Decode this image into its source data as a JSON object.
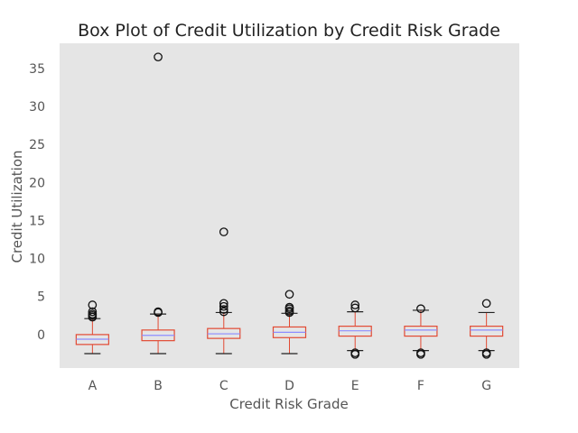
{
  "chart_data": {
    "type": "box",
    "title": "Box Plot of Credit Utilization by Credit Risk Grade",
    "xlabel": "Credit Risk Grade",
    "ylabel": "Credit Utilization",
    "categories": [
      "A",
      "B",
      "C",
      "D",
      "E",
      "F",
      "G"
    ],
    "ylim": [
      -4.4,
      38.3
    ],
    "yticks": [
      0,
      5,
      10,
      15,
      20,
      25,
      30,
      35
    ],
    "grid": false,
    "colors": {
      "plot_bg": "#e5e5e5",
      "box": "#e24a33",
      "median": "#8c8cff",
      "whisker": "#e24a33",
      "cap": "#222222",
      "flier": "#111111"
    },
    "boxes": [
      {
        "category": "A",
        "whislo": -2.5,
        "q1": -1.3,
        "median": -0.6,
        "q3": 0.0,
        "whishi": 2.1,
        "fliers": [
          2.3,
          2.5,
          2.7,
          3.0,
          3.9
        ]
      },
      {
        "category": "B",
        "whislo": -2.5,
        "q1": -0.8,
        "median": -0.1,
        "q3": 0.6,
        "whishi": 2.7,
        "fliers": [
          2.9,
          3.0,
          36.5
        ]
      },
      {
        "category": "C",
        "whislo": -2.5,
        "q1": -0.5,
        "median": 0.1,
        "q3": 0.8,
        "whishi": 2.9,
        "fliers": [
          3.0,
          3.3,
          3.7,
          4.1,
          13.5
        ]
      },
      {
        "category": "D",
        "whislo": -2.5,
        "q1": -0.4,
        "median": 0.3,
        "q3": 1.0,
        "whishi": 2.8,
        "fliers": [
          2.9,
          3.1,
          3.4,
          3.6,
          5.3
        ]
      },
      {
        "category": "E",
        "whislo": -2.1,
        "q1": -0.2,
        "median": 0.5,
        "q3": 1.1,
        "whishi": 3.0,
        "fliers": [
          -2.4,
          -2.6,
          3.5,
          3.9
        ]
      },
      {
        "category": "F",
        "whislo": -2.1,
        "q1": -0.2,
        "median": 0.6,
        "q3": 1.1,
        "whishi": 3.2,
        "fliers": [
          -2.4,
          -2.6,
          3.4
        ]
      },
      {
        "category": "G",
        "whislo": -2.1,
        "q1": -0.2,
        "median": 0.6,
        "q3": 1.1,
        "whishi": 2.9,
        "fliers": [
          -2.4,
          -2.6,
          4.1
        ]
      }
    ]
  }
}
